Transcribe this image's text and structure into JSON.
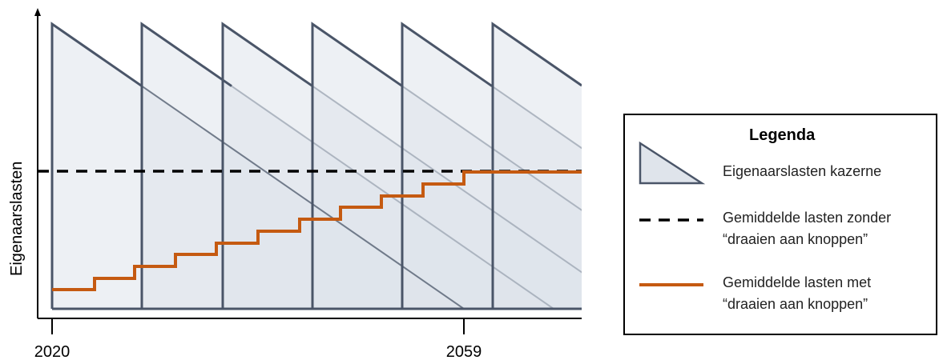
{
  "axis": {
    "y_label": "Eigenaarslasten",
    "x_ticks": [
      "2020",
      "2059"
    ]
  },
  "legend": {
    "title": "Legenda",
    "items": [
      {
        "label": "Eigenaarslasten kazerne",
        "symbol": "triangle"
      },
      {
        "label": "Gemiddelde lasten zonder\n“draaien aan knoppen”",
        "symbol": "dashed-line"
      },
      {
        "label": "Gemiddelde lasten met\n“draaien aan knoppen”",
        "symbol": "solid-line"
      }
    ]
  },
  "colors": {
    "triangle_fill": "#dfe4eb",
    "triangle_stroke": "#4a5568",
    "average_line": "#000000",
    "stepped_line": "#c55a11"
  }
}
